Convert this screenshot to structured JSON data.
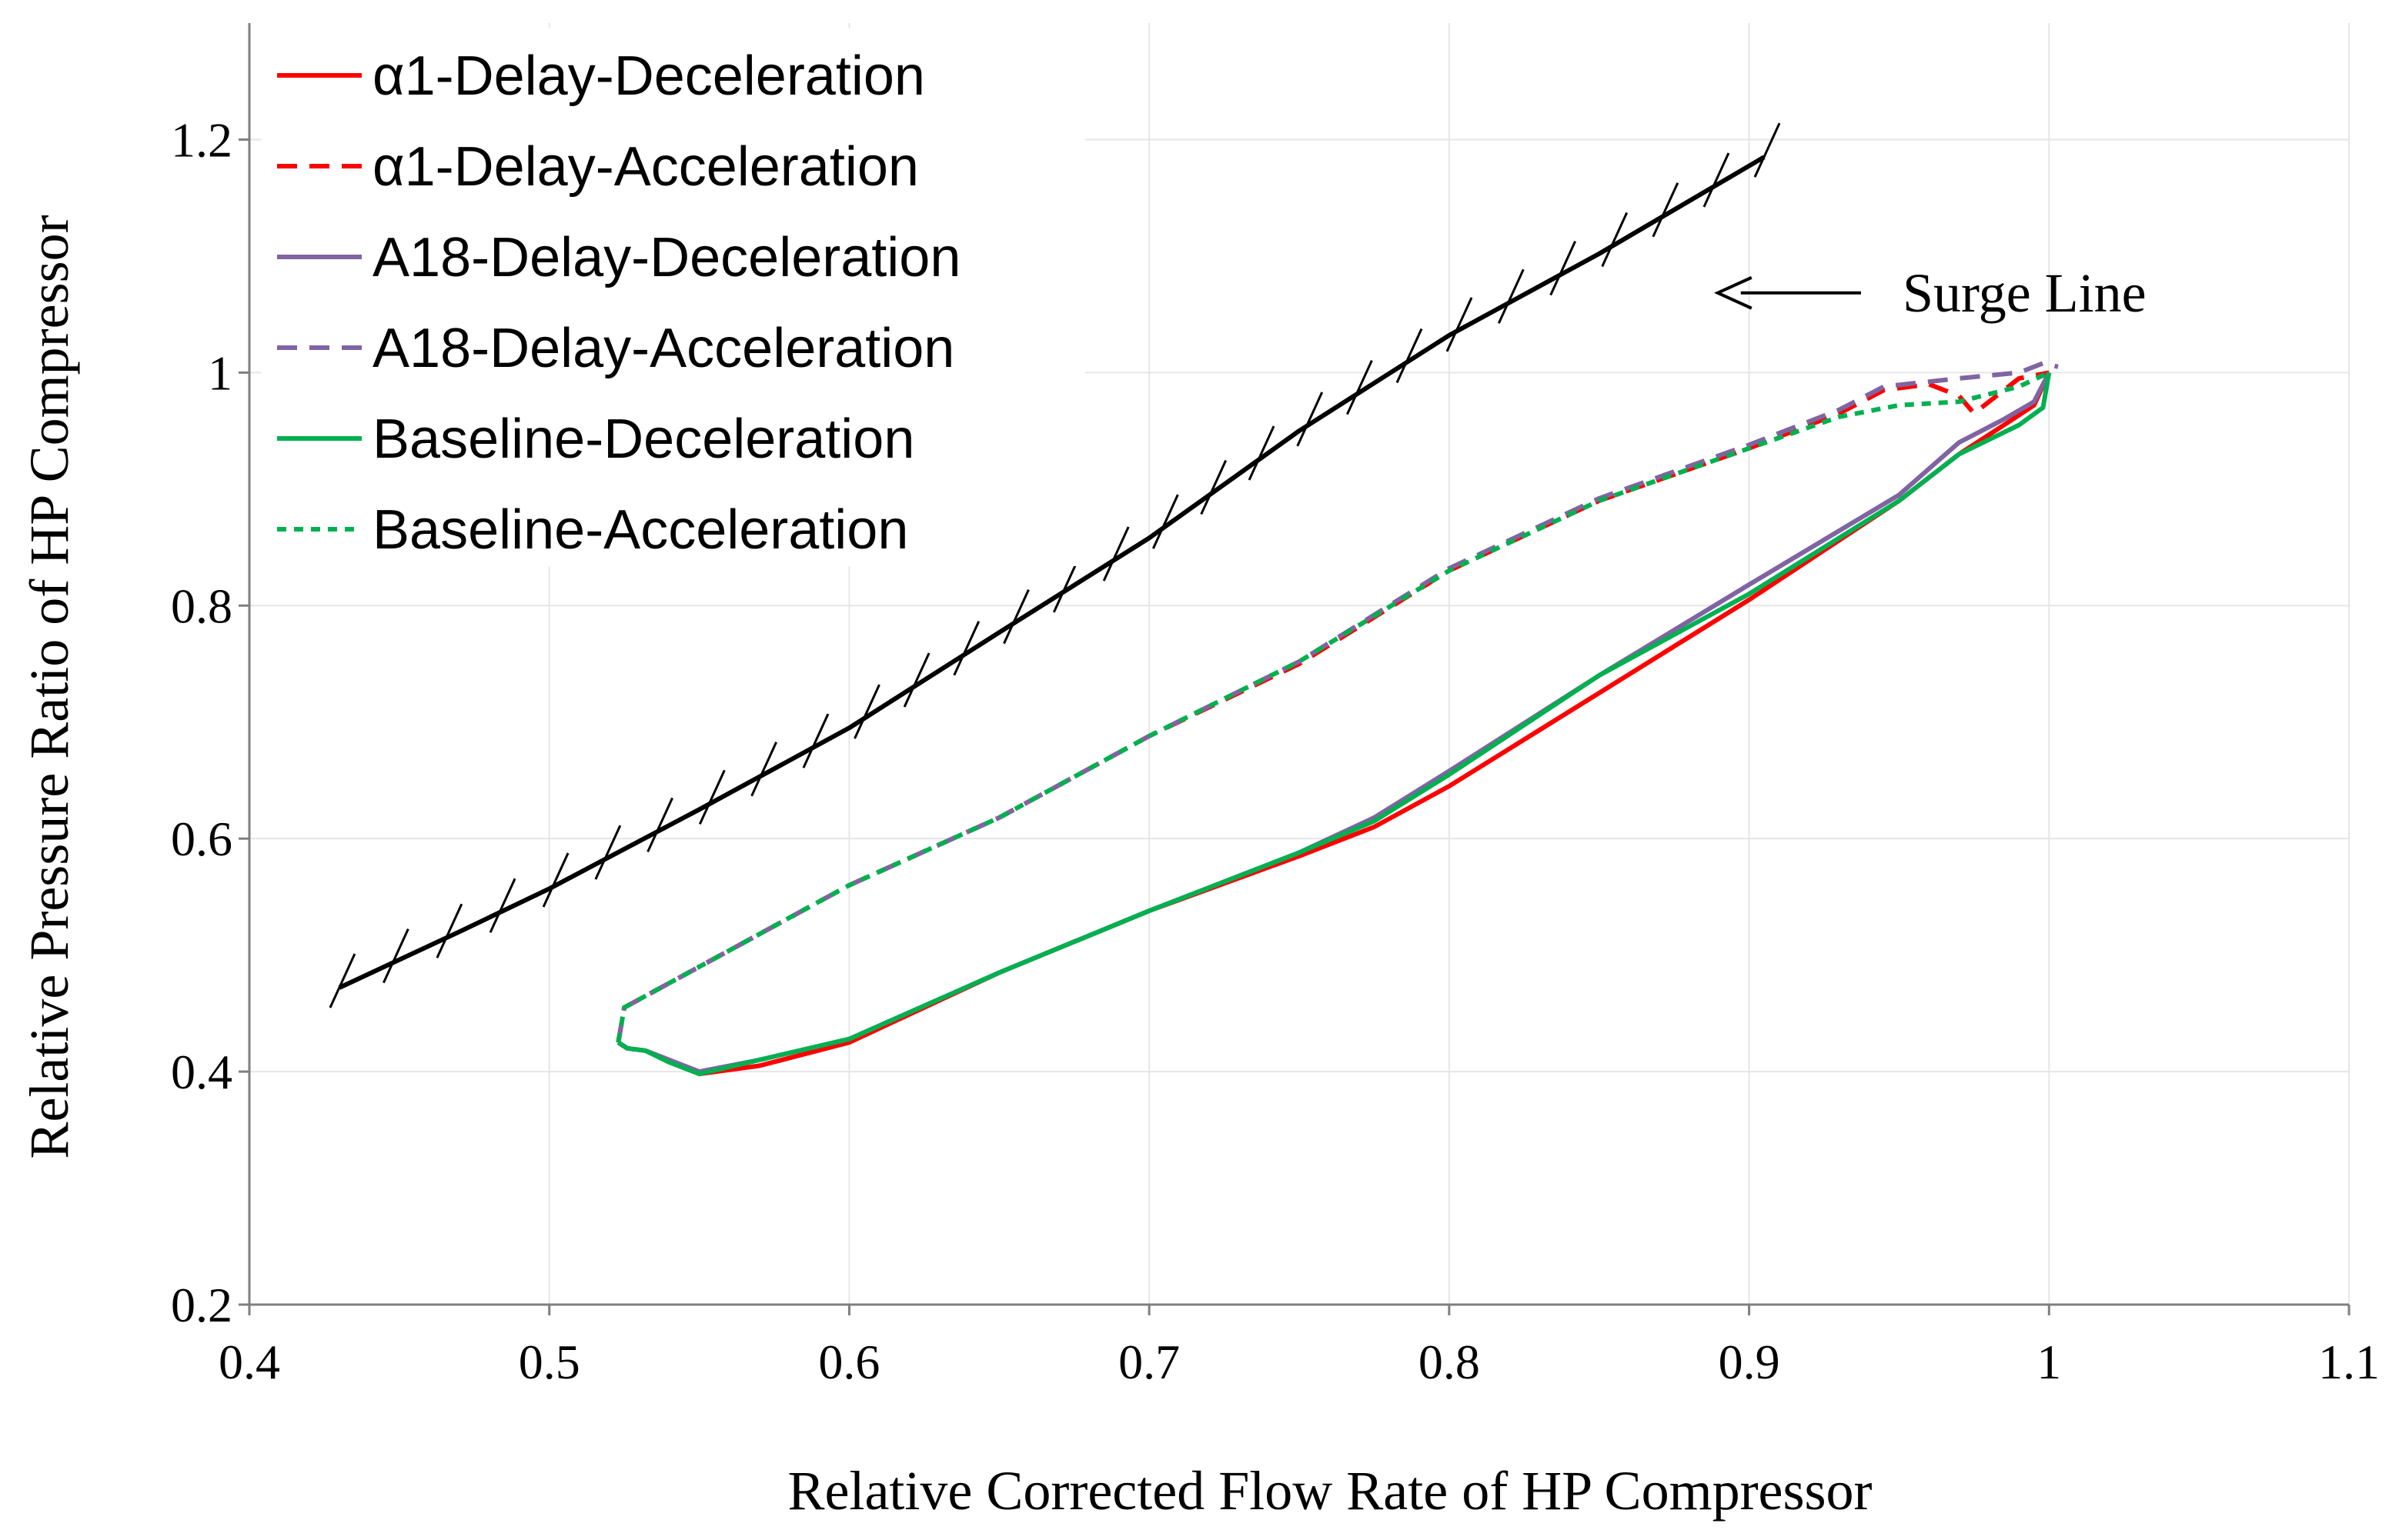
{
  "chart_data": {
    "type": "line",
    "title": "",
    "xlabel": "Relative Corrected Flow Rate of HP Compressor",
    "ylabel": "Relative Pressure Ratio of HP Compressor",
    "xlim": [
      0.4,
      1.1
    ],
    "ylim": [
      0.2,
      1.3
    ],
    "xticks": [
      "0.4",
      "0.5",
      "0.6",
      "0.7",
      "0.8",
      "0.9",
      "1",
      "1.1"
    ],
    "yticks": [
      "0.2",
      "0.4",
      "0.6",
      "0.8",
      "1",
      "1.2"
    ],
    "grid": true,
    "legend_position": "top-left",
    "annotation": {
      "text": "Surge Line",
      "points_to": [
        0.888,
        1.145
      ]
    },
    "surge_line": {
      "name": "Surge Line",
      "color": "#000000",
      "x": [
        0.43,
        0.47,
        0.5,
        0.55,
        0.6,
        0.65,
        0.7,
        0.75,
        0.8,
        0.85,
        0.905
      ],
      "y": [
        0.472,
        0.52,
        0.557,
        0.625,
        0.695,
        0.777,
        0.858,
        0.95,
        1.032,
        1.102,
        1.185
      ]
    },
    "series": [
      {
        "name": "α1-Delay-Deceleration",
        "color": "#ff0000",
        "style": "solid",
        "x": [
          1.0,
          0.995,
          0.985,
          0.97,
          0.95,
          0.9,
          0.85,
          0.8,
          0.775,
          0.75,
          0.7,
          0.65,
          0.6,
          0.57,
          0.55,
          0.54,
          0.532,
          0.526,
          0.523
        ],
        "y": [
          1.0,
          0.972,
          0.955,
          0.93,
          0.89,
          0.805,
          0.725,
          0.645,
          0.61,
          0.585,
          0.538,
          0.485,
          0.425,
          0.405,
          0.398,
          0.41,
          0.418,
          0.42,
          0.425
        ]
      },
      {
        "name": "α1-Delay-Acceleration",
        "color": "#ff0000",
        "style": "dashed",
        "x": [
          0.523,
          0.525,
          0.55,
          0.6,
          0.65,
          0.7,
          0.75,
          0.8,
          0.85,
          0.9,
          0.93,
          0.945,
          0.96,
          0.97,
          0.975,
          0.99,
          1.0
        ],
        "y": [
          0.425,
          0.455,
          0.49,
          0.56,
          0.618,
          0.688,
          0.75,
          0.83,
          0.89,
          0.935,
          0.965,
          0.985,
          0.99,
          0.98,
          0.965,
          0.995,
          1.0
        ]
      },
      {
        "name": "A18-Delay-Deceleration",
        "color": "#8064a2",
        "style": "solid",
        "x": [
          1.0,
          0.995,
          0.985,
          0.97,
          0.95,
          0.9,
          0.85,
          0.8,
          0.775,
          0.75,
          0.7,
          0.65,
          0.6,
          0.57,
          0.55,
          0.54,
          0.532,
          0.526,
          0.523
        ],
        "y": [
          1.0,
          0.975,
          0.96,
          0.94,
          0.895,
          0.818,
          0.74,
          0.658,
          0.618,
          0.588,
          0.538,
          0.485,
          0.428,
          0.41,
          0.4,
          0.41,
          0.418,
          0.42,
          0.425
        ]
      },
      {
        "name": "A18-Delay-Acceleration",
        "color": "#8064a2",
        "style": "dashed",
        "x": [
          0.523,
          0.525,
          0.55,
          0.6,
          0.65,
          0.7,
          0.75,
          0.8,
          0.85,
          0.9,
          0.93,
          0.945,
          0.97,
          0.99,
          0.998,
          1.003
        ],
        "y": [
          0.425,
          0.455,
          0.49,
          0.56,
          0.618,
          0.688,
          0.752,
          0.832,
          0.892,
          0.938,
          0.968,
          0.988,
          0.995,
          1.0,
          1.008,
          1.005
        ]
      },
      {
        "name": "Baseline-Deceleration",
        "color": "#00b050",
        "style": "solid",
        "x": [
          1.0,
          0.998,
          0.99,
          0.97,
          0.95,
          0.9,
          0.85,
          0.8,
          0.775,
          0.75,
          0.7,
          0.65,
          0.6,
          0.57,
          0.55,
          0.54,
          0.532,
          0.526,
          0.523
        ],
        "y": [
          1.0,
          0.97,
          0.955,
          0.93,
          0.89,
          0.81,
          0.74,
          0.655,
          0.615,
          0.588,
          0.538,
          0.485,
          0.428,
          0.41,
          0.398,
          0.408,
          0.418,
          0.42,
          0.425
        ]
      },
      {
        "name": "Baseline-Acceleration",
        "color": "#00b050",
        "style": "dotted",
        "x": [
          0.523,
          0.525,
          0.55,
          0.6,
          0.65,
          0.7,
          0.75,
          0.8,
          0.85,
          0.9,
          0.93,
          0.95,
          0.97,
          0.99,
          1.0
        ],
        "y": [
          0.425,
          0.455,
          0.49,
          0.56,
          0.618,
          0.688,
          0.752,
          0.83,
          0.89,
          0.935,
          0.962,
          0.972,
          0.975,
          0.988,
          1.0
        ]
      }
    ]
  }
}
